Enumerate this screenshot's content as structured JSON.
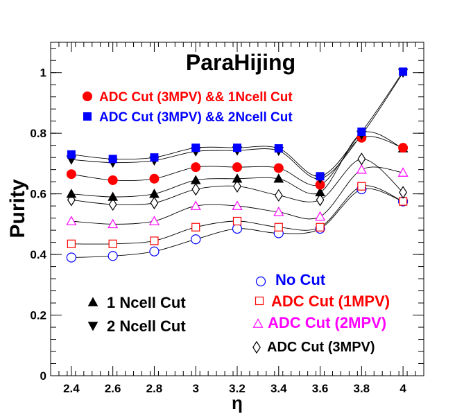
{
  "chart_data": {
    "type": "scatter",
    "title": "ParaHijing",
    "xlabel": "η",
    "ylabel": "Purity",
    "xlim": [
      2.3,
      4.1
    ],
    "ylim": [
      0,
      1.1
    ],
    "x_ticks": [
      "2.4",
      "2.6",
      "2.8",
      "3",
      "3.2",
      "3.4",
      "3.6",
      "3.8",
      "4"
    ],
    "y_ticks": [
      "0",
      "0.2",
      "0.4",
      "0.6",
      "0.8",
      "1"
    ],
    "grid": false,
    "x": [
      2.4,
      2.6,
      2.8,
      3.0,
      3.2,
      3.4,
      3.6,
      3.8,
      4.0
    ],
    "series": [
      {
        "name": "No Cut",
        "marker": "open-circle",
        "color": "#0000ff",
        "values": [
          0.39,
          0.395,
          0.41,
          0.45,
          0.485,
          0.47,
          0.485,
          0.615,
          0.575
        ]
      },
      {
        "name": "ADC Cut (1MPV)",
        "marker": "open-square",
        "color": "#ff0000",
        "values": [
          0.435,
          0.435,
          0.445,
          0.49,
          0.51,
          0.49,
          0.49,
          0.625,
          0.575
        ]
      },
      {
        "name": "ADC Cut (2MPV)",
        "marker": "open-triangle-up",
        "color": "#ff00ff",
        "values": [
          0.51,
          0.5,
          0.51,
          0.56,
          0.56,
          0.54,
          0.525,
          0.68,
          0.67
        ]
      },
      {
        "name": "ADC Cut (3MPV)",
        "marker": "open-diamond",
        "color": "#000000",
        "values": [
          0.58,
          0.565,
          0.57,
          0.615,
          0.625,
          0.595,
          0.58,
          0.715,
          0.605
        ]
      },
      {
        "name": "1 Ncell Cut",
        "marker": "filled-triangle-up",
        "color": "#000000",
        "values": [
          0.6,
          0.59,
          0.6,
          0.645,
          0.65,
          0.65,
          0.605,
          0.8,
          0.75
        ]
      },
      {
        "name": "ADC Cut (3MPV) && 1Ncell Cut",
        "marker": "filled-circle",
        "color": "#ff0000",
        "values": [
          0.665,
          0.645,
          0.65,
          0.688,
          0.688,
          0.685,
          0.63,
          0.785,
          0.752
        ]
      },
      {
        "name": "2 Ncell Cut",
        "marker": "filled-triangle-down",
        "color": "#000000",
        "values": [
          0.713,
          0.703,
          0.71,
          0.74,
          0.743,
          0.742,
          0.65,
          0.795,
          1.0
        ]
      },
      {
        "name": "ADC Cut (3MPV) && 2Ncell Cut",
        "marker": "filled-square",
        "color": "#0000ff",
        "values": [
          0.73,
          0.715,
          0.72,
          0.752,
          0.752,
          0.75,
          0.658,
          0.805,
          1.003
        ]
      }
    ]
  }
}
